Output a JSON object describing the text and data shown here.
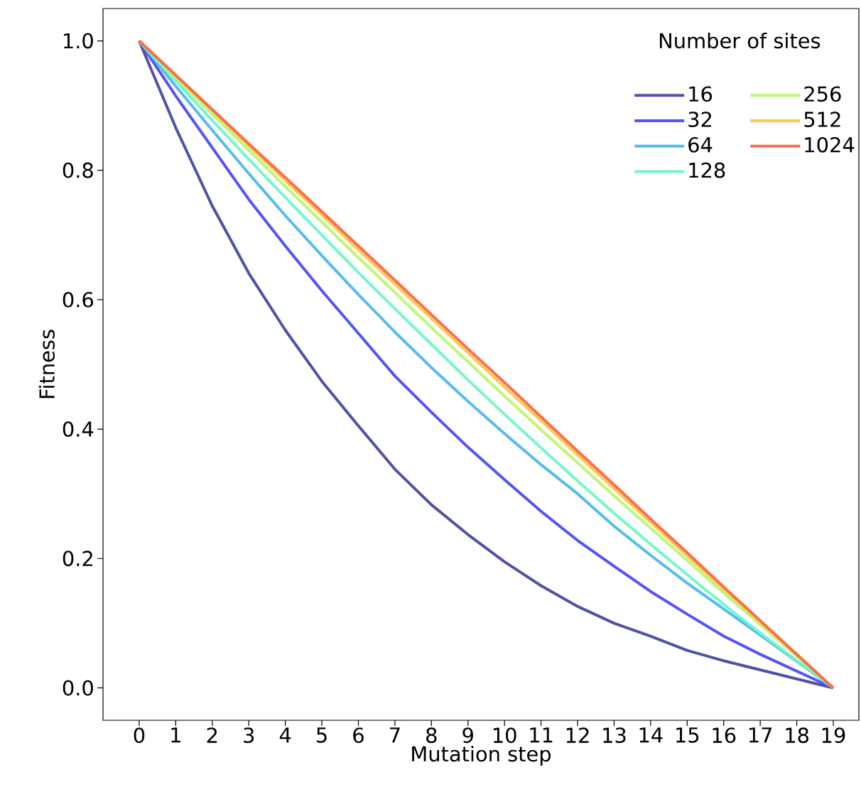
{
  "chart_data": {
    "type": "line",
    "xlabel": "Mutation step",
    "ylabel": "Fitness",
    "legend_title": "Number of sites",
    "x": [
      0,
      1,
      2,
      3,
      4,
      5,
      6,
      7,
      8,
      9,
      10,
      11,
      12,
      13,
      14,
      15,
      16,
      17,
      18,
      19
    ],
    "series": [
      {
        "name": "16",
        "color": "#474aa0",
        "values": [
          1.0,
          0.866,
          0.745,
          0.641,
          0.553,
          0.474,
          0.405,
          0.338,
          0.283,
          0.237,
          0.195,
          0.158,
          0.126,
          0.1,
          0.08,
          0.058,
          0.042,
          0.028,
          0.014,
          0.0
        ]
      },
      {
        "name": "32",
        "color": "#4b4cf5",
        "values": [
          1.0,
          0.915,
          0.835,
          0.755,
          0.683,
          0.614,
          0.548,
          0.482,
          0.426,
          0.372,
          0.322,
          0.273,
          0.228,
          0.188,
          0.149,
          0.114,
          0.08,
          0.052,
          0.026,
          0.0
        ]
      },
      {
        "name": "64",
        "color": "#4cb8f0",
        "values": [
          1.0,
          0.93,
          0.862,
          0.795,
          0.73,
          0.668,
          0.608,
          0.55,
          0.495,
          0.443,
          0.393,
          0.345,
          0.3,
          0.25,
          0.205,
          0.162,
          0.122,
          0.082,
          0.041,
          0.0
        ]
      },
      {
        "name": "128",
        "color": "#6ff7c6",
        "values": [
          1.0,
          0.938,
          0.877,
          0.817,
          0.758,
          0.7,
          0.642,
          0.586,
          0.531,
          0.476,
          0.423,
          0.371,
          0.32,
          0.27,
          0.222,
          0.175,
          0.129,
          0.085,
          0.042,
          0.0
        ]
      },
      {
        "name": "256",
        "color": "#bef66a",
        "values": [
          1.0,
          0.943,
          0.887,
          0.831,
          0.775,
          0.72,
          0.665,
          0.611,
          0.557,
          0.504,
          0.451,
          0.399,
          0.348,
          0.297,
          0.247,
          0.197,
          0.147,
          0.098,
          0.049,
          0.0
        ]
      },
      {
        "name": "512",
        "color": "#fcc64a",
        "values": [
          1.0,
          0.946,
          0.892,
          0.838,
          0.784,
          0.731,
          0.677,
          0.624,
          0.571,
          0.518,
          0.465,
          0.413,
          0.36,
          0.308,
          0.256,
          0.204,
          0.153,
          0.102,
          0.051,
          0.0
        ]
      },
      {
        "name": "1024",
        "color": "#f8684a",
        "values": [
          1.0,
          0.947,
          0.894,
          0.841,
          0.789,
          0.736,
          0.683,
          0.63,
          0.577,
          0.524,
          0.472,
          0.419,
          0.366,
          0.314,
          0.261,
          0.209,
          0.156,
          0.104,
          0.052,
          0.0
        ]
      }
    ],
    "xlim": [
      -0.99,
      19.7
    ],
    "ylim": [
      -0.05,
      1.05
    ],
    "xticks": [
      0,
      1,
      2,
      3,
      4,
      5,
      6,
      7,
      8,
      9,
      10,
      11,
      12,
      13,
      14,
      15,
      16,
      17,
      18,
      19
    ],
    "yticks": [
      {
        "value": 0,
        "label": "0.0"
      },
      {
        "value": 0.2,
        "label": "0.2"
      },
      {
        "value": 0.4,
        "label": "0.4"
      },
      {
        "value": 0.6,
        "label": "0.6"
      },
      {
        "value": 0.8,
        "label": "0.8"
      },
      {
        "value": 1,
        "label": "1.0"
      }
    ],
    "grid": false,
    "legend": "top right",
    "marker": "none",
    "line_style": "solid"
  }
}
